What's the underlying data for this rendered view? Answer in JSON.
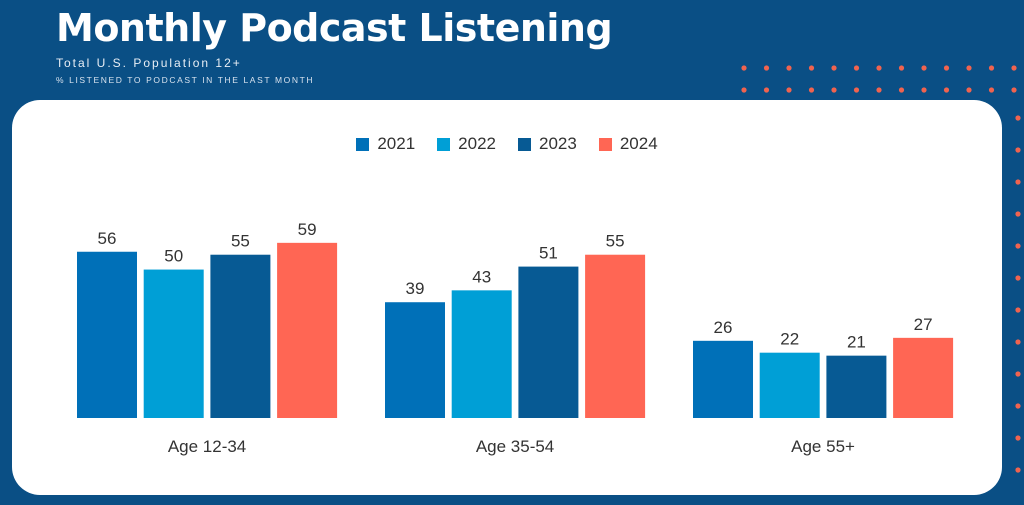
{
  "header": {
    "title": "Monthly Podcast Listening",
    "subtitle": "Total U.S. Population 12+",
    "subtitle2": "% LISTENED TO PODCAST IN THE LAST MONTH"
  },
  "colors": {
    "background": "#0a4f85",
    "panel": "#ffffff",
    "dots": "#f0634f"
  },
  "chart_data": {
    "type": "bar",
    "categories": [
      "Age 12-34",
      "Age 35-54",
      "Age 55+"
    ],
    "series": [
      {
        "name": "2021",
        "color": "#0070b8",
        "values": [
          56,
          39,
          26
        ]
      },
      {
        "name": "2022",
        "color": "#009fd6",
        "values": [
          50,
          43,
          22
        ]
      },
      {
        "name": "2023",
        "color": "#075a94",
        "values": [
          55,
          51,
          21
        ]
      },
      {
        "name": "2024",
        "color": "#ff6654",
        "values": [
          59,
          55,
          27
        ]
      }
    ],
    "ylim": [
      0,
      64
    ],
    "legend": "top-center",
    "grid": false,
    "data_labels": true
  }
}
